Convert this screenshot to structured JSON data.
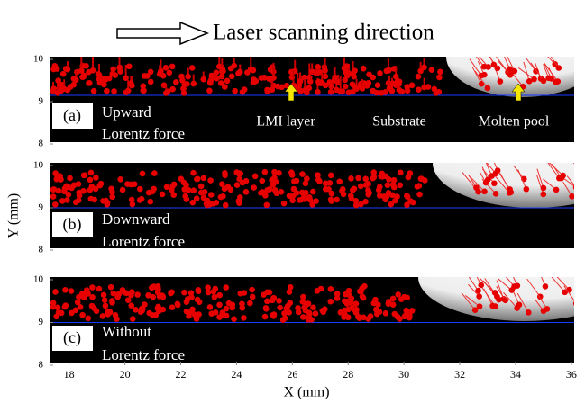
{
  "title": "Laser scanning direction",
  "x_axis": {
    "label": "X (mm)",
    "lim": [
      17.3,
      36.1
    ],
    "ticks": [
      18,
      20,
      22,
      24,
      26,
      28,
      30,
      32,
      34,
      36
    ]
  },
  "y_axis": {
    "label": "Y (mm)"
  },
  "panels": [
    {
      "tag": "(a)",
      "caption": [
        "Upward",
        "Lorentz force"
      ],
      "ylim": [
        8,
        10
      ],
      "yticks": [
        8,
        9,
        10
      ],
      "annotations": [
        "LMI layer",
        "Substrate",
        "Molten pool"
      ]
    },
    {
      "tag": "(b)",
      "caption": [
        "Downward",
        "Lorentz force"
      ],
      "ylim": [
        8,
        10
      ],
      "yticks": [
        8,
        9,
        10
      ]
    },
    {
      "tag": "(c)",
      "caption": [
        "Without",
        "Lorentz force"
      ],
      "ylim": [
        8,
        10
      ],
      "yticks": [
        8,
        9,
        10
      ]
    }
  ]
}
